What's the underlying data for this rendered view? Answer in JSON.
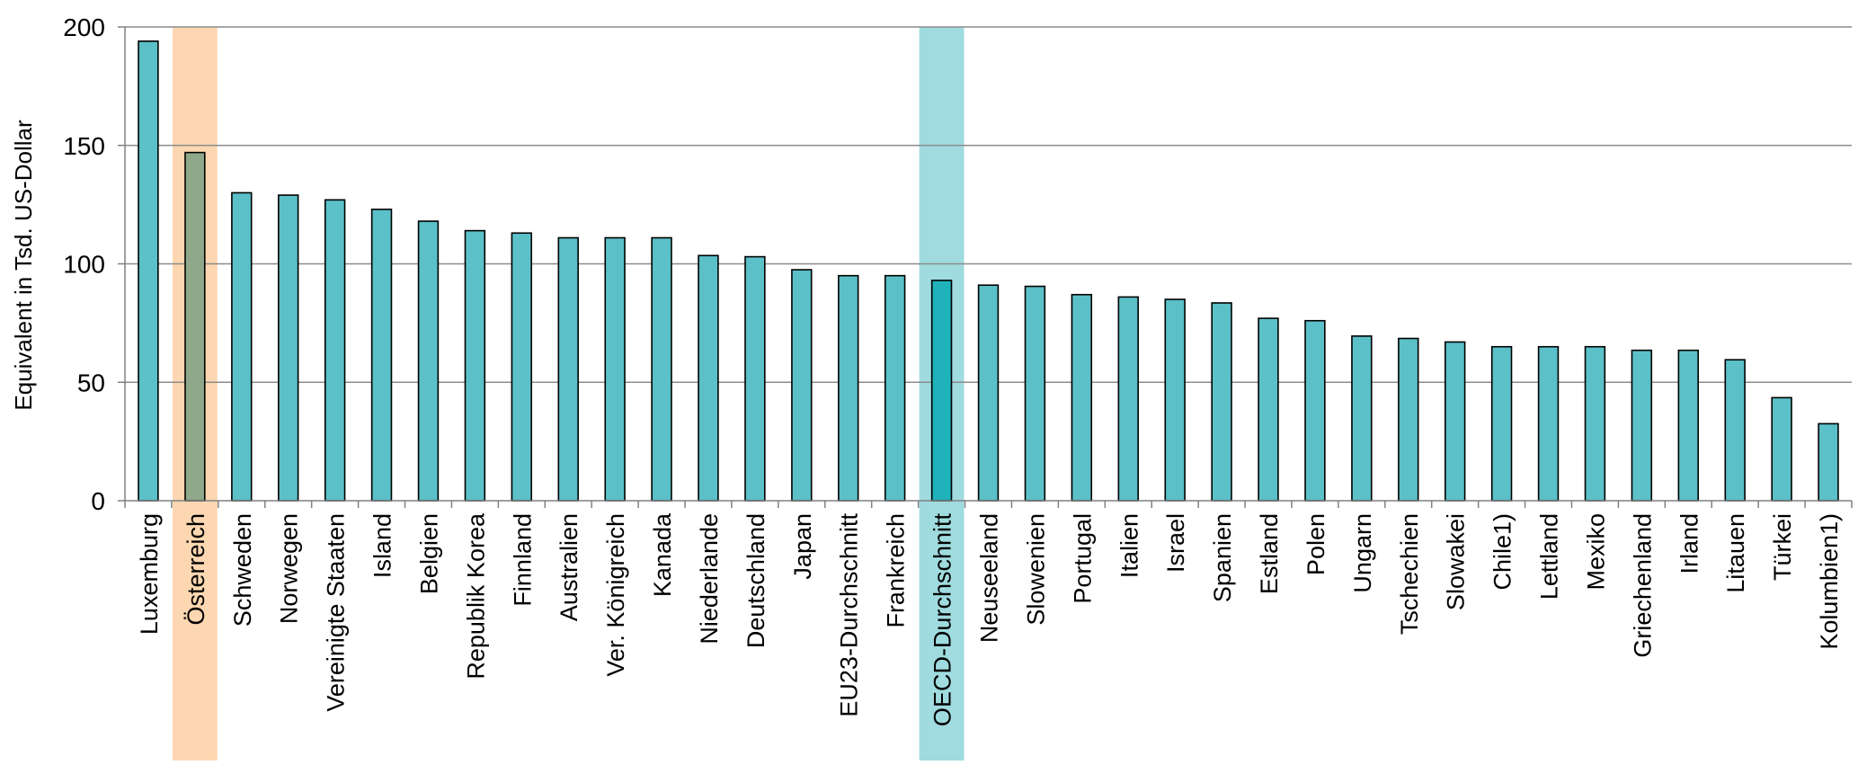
{
  "chart_data": {
    "type": "bar",
    "title": "",
    "xlabel": "",
    "ylabel": "Equivalent  in Tsd. US-Dollar",
    "ylim": [
      0,
      200
    ],
    "yticks": [
      0,
      50,
      100,
      150,
      200
    ],
    "grid": true,
    "legend": "none",
    "colors": {
      "bar": "#5bc0c8",
      "bar_highlight_austria": "#8fa88a",
      "bar_highlight_oecd": "#1fb2bb",
      "band_austria": "#fdd7b1",
      "band_oecd": "#9fdbdf",
      "grid": "#8c8c8c"
    },
    "highlight_bands": [
      "Österreich",
      "OECD-Durchschnitt"
    ],
    "categories": [
      "Luxemburg",
      "Österreich",
      "Schweden",
      "Norwegen",
      "Vereinigte Staaten",
      "Island",
      "Belgien",
      "Republik Korea",
      "Finnland",
      "Australien",
      "Ver. Königreich",
      "Kanada",
      "Niederlande",
      "Deutschland",
      "Japan",
      "EU23-Durchschnitt",
      "Frankreich",
      "OECD-Durchschnitt",
      "Neuseeland",
      "Slowenien",
      "Portugal",
      "Italien",
      "Israel",
      "Spanien",
      "Estland",
      "Polen",
      "Ungarn",
      "Tschechien",
      "Slowakei",
      "Chile1)",
      "Lettland",
      "Mexiko",
      "Griechenland",
      "Irland",
      "Litauen",
      "Türkei",
      "Kolumbien1)"
    ],
    "values": [
      194,
      147,
      130,
      129,
      127,
      123,
      118,
      114,
      113,
      111,
      111,
      111,
      103.5,
      103,
      97.5,
      95,
      95,
      93,
      91,
      90.5,
      87,
      86,
      85,
      83.5,
      77,
      76,
      69.5,
      68.5,
      67,
      65,
      65,
      65,
      63.5,
      63.5,
      59.5,
      43.5,
      32.5
    ]
  }
}
